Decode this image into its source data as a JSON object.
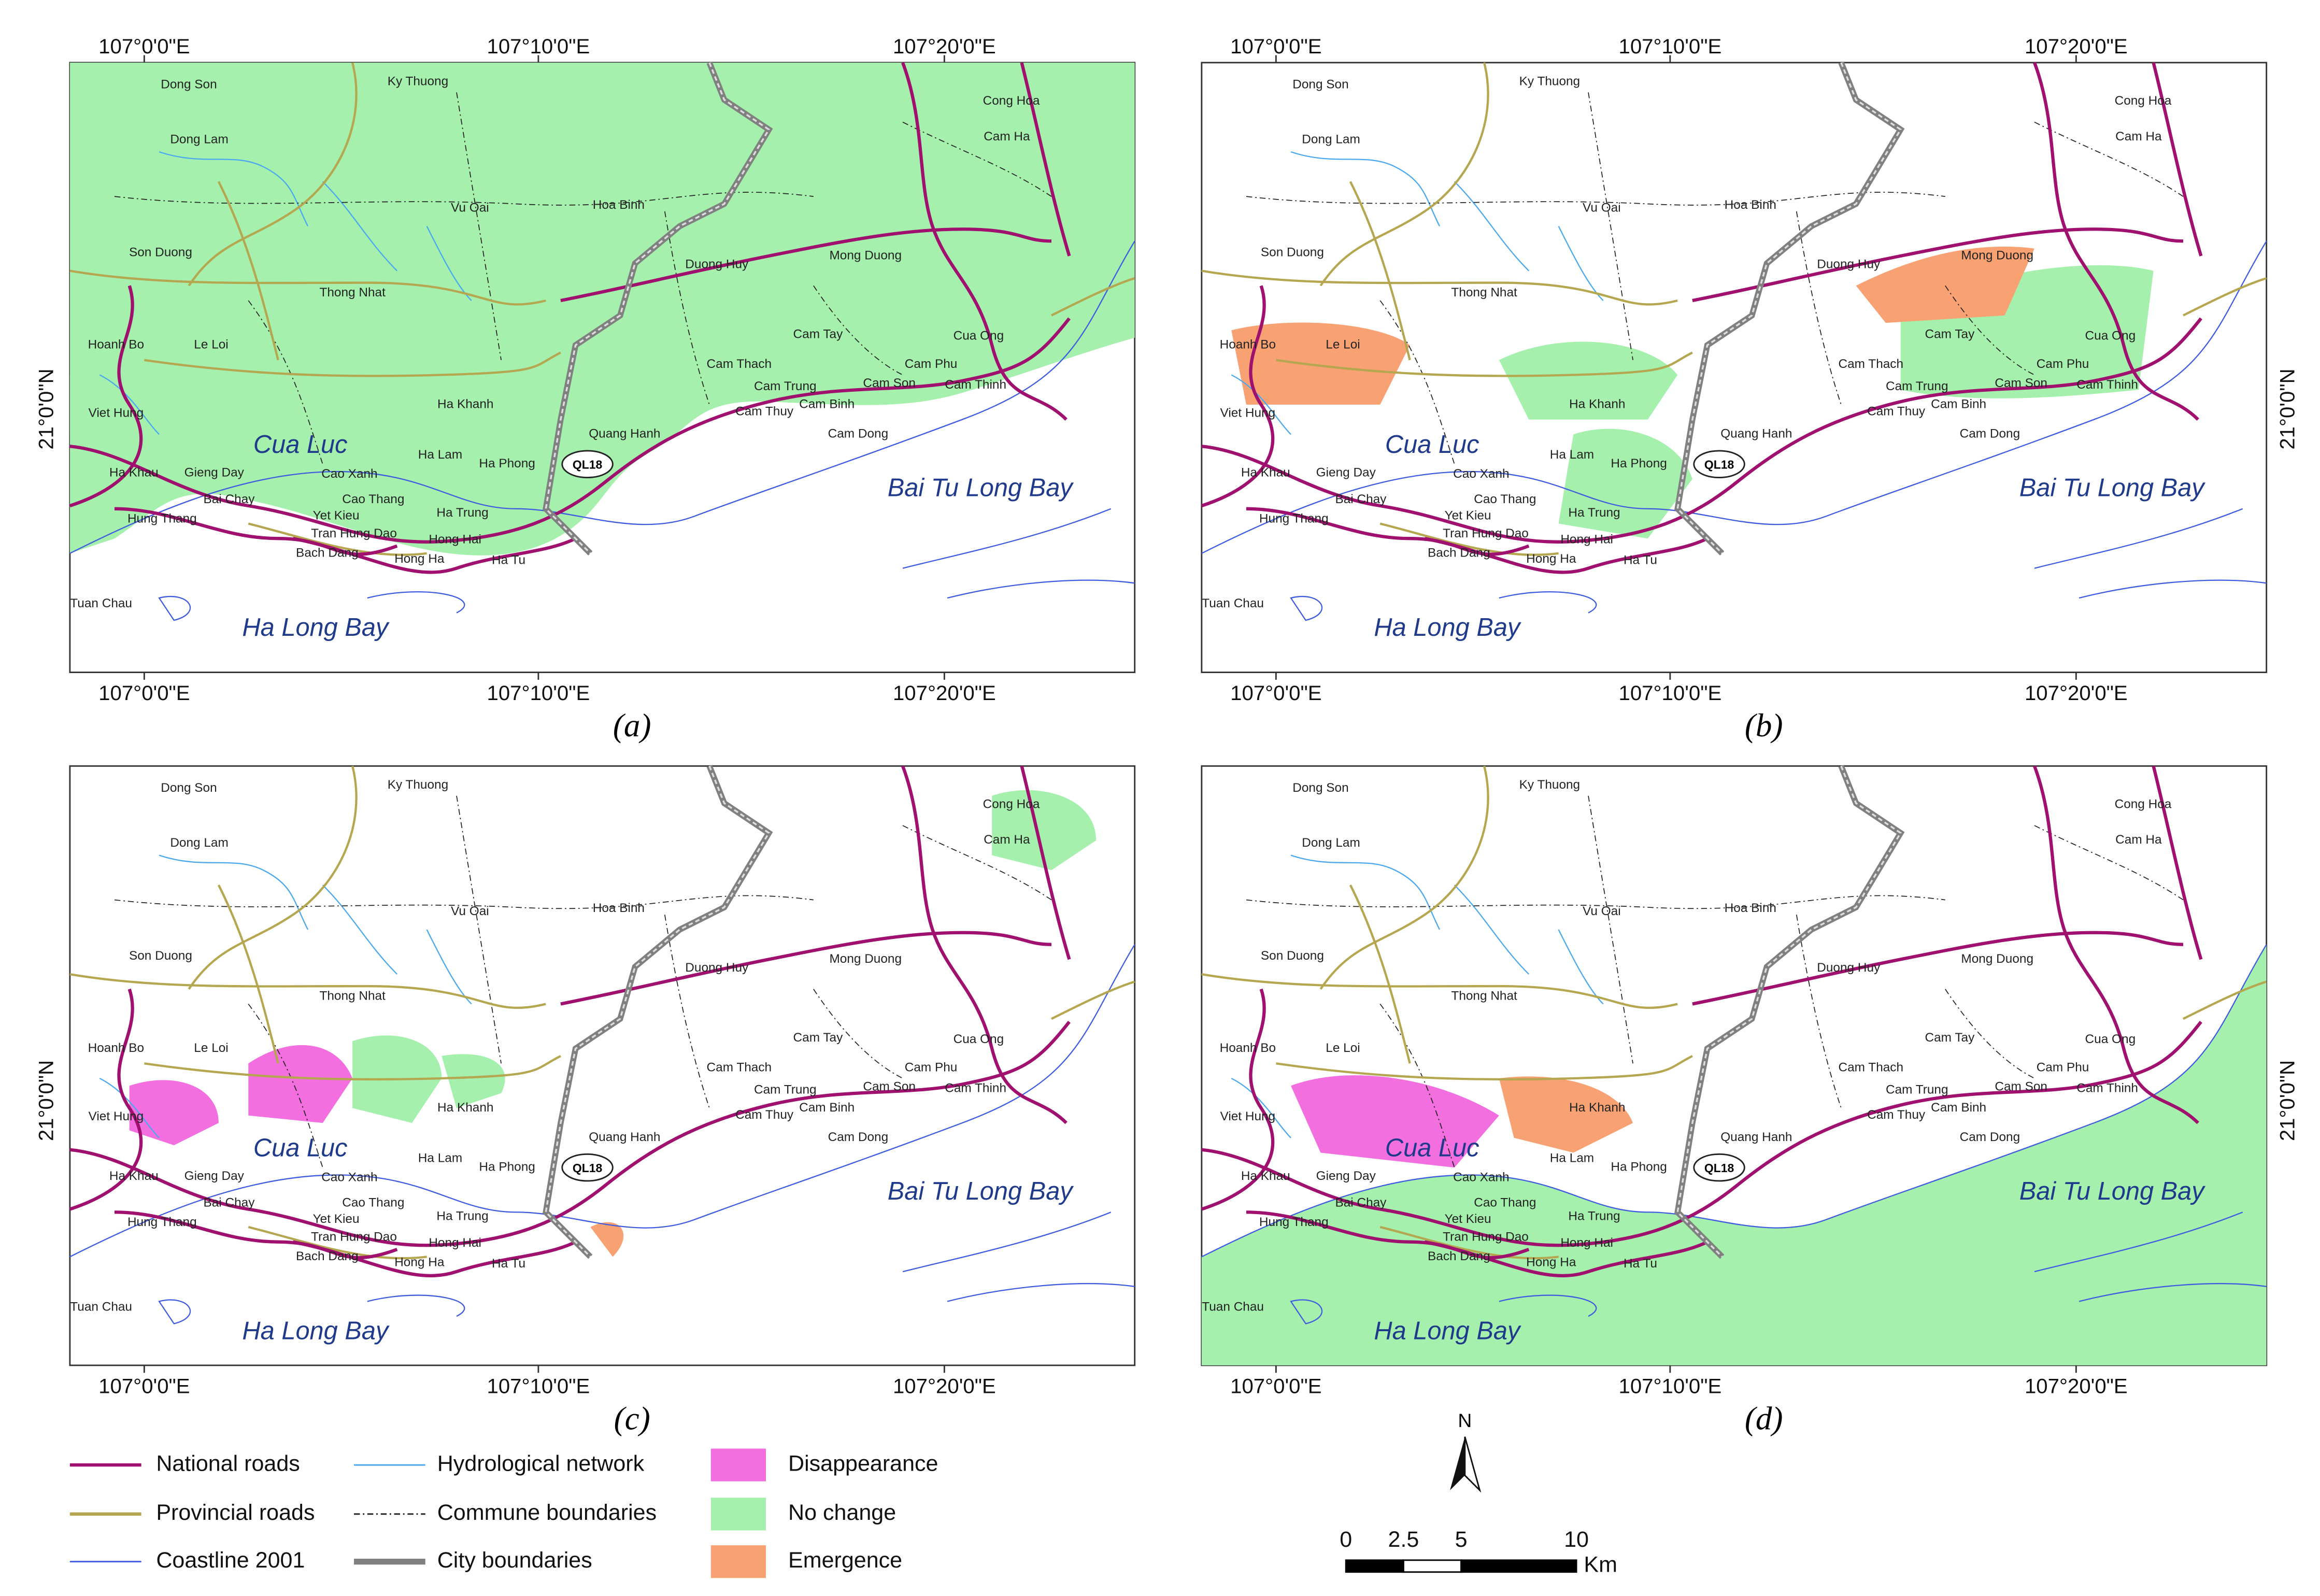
{
  "panels": [
    {
      "label": "(a)"
    },
    {
      "label": "(b)"
    },
    {
      "label": "(c)"
    },
    {
      "label": "(d)"
    }
  ],
  "coordinates": {
    "longitudes": [
      "107°0'0\"E",
      "107°10'0\"E",
      "107°20'0\"E"
    ],
    "latitude": "21°0'0\"N"
  },
  "places": [
    "Dong Son",
    "Ky Thuong",
    "Dong Lam",
    "Hoa Binh",
    "Vu Oai",
    "Mong Duong",
    "Cong Hoa",
    "Cam Ha",
    "Son Duong",
    "Duong Huy",
    "Thong Nhat",
    "Hoanh Bo",
    "Le Loi",
    "Cam Tay",
    "Cua Ong",
    "Cam Thach",
    "Cam Phu",
    "Cam Son",
    "Cam Thinh",
    "Viet Hung",
    "Ha Khanh",
    "Cam Trung",
    "Cam Binh",
    "Cam Thuy",
    "Quang Hanh",
    "Cam Dong",
    "Ha Lam",
    "Ha Phong",
    "Cao Xanh",
    "Gieng Day",
    "Ha Khau",
    "Bai Chay",
    "Cao Thang",
    "Hung Thang",
    "Yet Kieu",
    "Ha Trung",
    "Tran Hung Dao",
    "Bach Dang",
    "Hong Hai",
    "Hong Ha",
    "Ha Tu",
    "Tuan Chau"
  ],
  "water_bodies": [
    "Cua Luc",
    "Bai Tu Long Bay",
    "Ha Long Bay"
  ],
  "road_label": "QL18",
  "legend": [
    {
      "label": "National roads",
      "color": "#a0106e"
    },
    {
      "label": "Provincial roads",
      "color": "#b5a650"
    },
    {
      "label": "Coastline 2001",
      "color": "#3f5be0"
    },
    {
      "label": "Hydrological network",
      "color": "#4aa8ee"
    },
    {
      "label": "Commune boundaries",
      "color": "#222222"
    },
    {
      "label": "City boundaries",
      "color": "#808080"
    },
    {
      "label": "Disappearance",
      "color": "#f36fe0"
    },
    {
      "label": "No change",
      "color": "#a4f0ac"
    },
    {
      "label": "Emergence",
      "color": "#f8a274"
    }
  ],
  "scale_bar": {
    "ticks": [
      0,
      2.5,
      5,
      10
    ],
    "unit": "Km"
  },
  "north": "N"
}
